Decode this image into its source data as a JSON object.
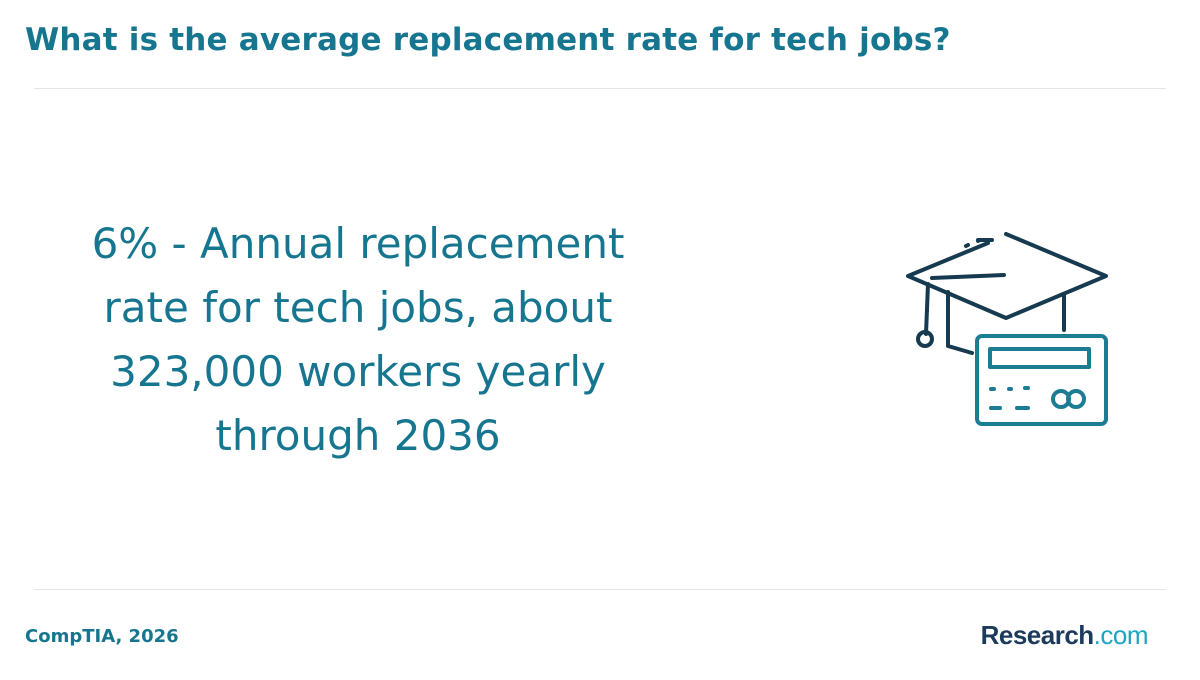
{
  "header": {
    "title": "What is the average replacement rate for tech jobs?"
  },
  "stat": {
    "text": "6% - Annual replacement rate for tech jobs, about 323,000 workers yearly through 2036"
  },
  "illustration": {
    "icon": "graduation-cap-and-card-icon"
  },
  "footer": {
    "source": "CompTIA, 2026",
    "brand_name": "Research",
    "brand_domain": ".com"
  },
  "colors": {
    "title": "#17768f",
    "icon_dark": "#163a4f",
    "icon_teal": "#1c7c93",
    "brand_name": "#1b3a5c",
    "brand_domain": "#18a6c4"
  }
}
